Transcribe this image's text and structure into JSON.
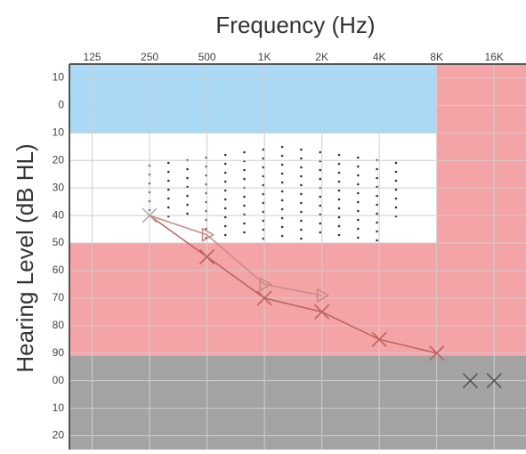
{
  "chart_data": {
    "type": "line",
    "title": "Frequency (Hz)",
    "y_label": "Hearing Level (dB HL)",
    "log_x": true,
    "y_inverted": true,
    "grid": true,
    "xlim": [
      95,
      23500
    ],
    "ylim": [
      -15,
      125
    ],
    "xticks": [
      125,
      250,
      500,
      {
        "value": 1000,
        "label": "1K"
      },
      {
        "value": 2000,
        "label": "2K"
      },
      {
        "value": 4000,
        "label": "4K"
      },
      {
        "value": 8000,
        "label": "8K"
      },
      {
        "value": 16000,
        "label": "16K"
      }
    ],
    "yticks": [
      {
        "value": -10,
        "label": "10"
      },
      0,
      10,
      20,
      30,
      40,
      50,
      60,
      70,
      80,
      90,
      {
        "value": 100,
        "label": "00"
      },
      {
        "value": 110,
        "label": "10"
      },
      {
        "value": 120,
        "label": "20"
      }
    ],
    "regions": [
      {
        "x": [
          95,
          8000
        ],
        "y": [
          -15,
          10
        ],
        "color": "#aad9f6"
      },
      {
        "x": [
          95,
          8000
        ],
        "y": [
          50,
          91
        ],
        "color": "#f4a3a6"
      },
      {
        "x": [
          8000,
          23500
        ],
        "y": [
          -15,
          91
        ],
        "color": "#f4a3a6"
      },
      {
        "x": [
          95,
          23500
        ],
        "y": [
          91,
          125
        ],
        "color": "#a3a3a3"
      }
    ],
    "series": [
      {
        "color": "#c0625e",
        "marker": "x",
        "line": true,
        "x": [
          250,
          500,
          1000,
          2000,
          4000,
          8000
        ],
        "values": [
          40,
          55,
          70,
          75,
          85,
          90
        ],
        "marker_colors": [
          "#b0b0b0",
          "#c0625e",
          "#c0625e",
          "#c0625e",
          "#c0625e",
          "#c0625e"
        ]
      },
      {
        "color": "#c98985",
        "marker": "triangle",
        "line": true,
        "x": [
          250,
          500,
          1000,
          2000
        ],
        "values": [
          40,
          47,
          65,
          69
        ],
        "markers": [
          "none",
          "triangle",
          "triangle",
          "triangle"
        ]
      },
      {
        "color": "#555555",
        "marker": "x",
        "line": false,
        "x": [
          12000,
          16000
        ],
        "values": [
          100,
          100
        ]
      }
    ]
  }
}
